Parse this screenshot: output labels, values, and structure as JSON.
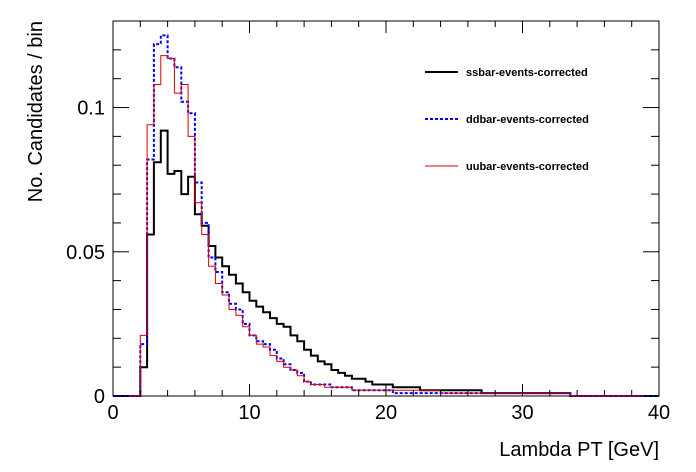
{
  "chart_data": {
    "type": "line",
    "title": "",
    "xlabel": "Lambda PT [GeV]",
    "ylabel": "No. Candidates / bin",
    "xlim": [
      0,
      40
    ],
    "ylim": [
      0,
      0.13
    ],
    "xticks": [
      0,
      10,
      20,
      30,
      40
    ],
    "ytick_values": [
      0,
      0.05,
      0.1
    ],
    "yticks": [
      "0",
      "0.05",
      "0.1"
    ],
    "bin_edges_start": 0,
    "bin_width": 0.5,
    "legend_position": "top-right",
    "series": [
      {
        "name": "ssbar-events-corrected",
        "color": "#000000",
        "style": "solid",
        "values": [
          0,
          0,
          0,
          0,
          0.01,
          0.056,
          0.081,
          0.092,
          0.077,
          0.078,
          0.07,
          0.076,
          0.063,
          0.059,
          0.052,
          0.048,
          0.045,
          0.042,
          0.039,
          0.036,
          0.033,
          0.031,
          0.029,
          0.027,
          0.025,
          0.024,
          0.021,
          0.019,
          0.016,
          0.014,
          0.012,
          0.011,
          0.009,
          0.008,
          0.007,
          0.006,
          0.006,
          0.005,
          0.004,
          0.004,
          0.004,
          0.003,
          0.003,
          0.003,
          0.003,
          0.002,
          0.002,
          0.002,
          0.002,
          0.002,
          0.002,
          0.002,
          0.002,
          0.002,
          0.001,
          0.001,
          0.001,
          0.001,
          0.001,
          0.001,
          0.001,
          0.001,
          0.001,
          0.001,
          0.001,
          0.001,
          0.001,
          0,
          0,
          0,
          0,
          0,
          0,
          0,
          0,
          0,
          0,
          0,
          0,
          0
        ]
      },
      {
        "name": "ddbar-events-corrected",
        "color": "#0000ff",
        "style": "dotted",
        "values": [
          0,
          0,
          0,
          0,
          0.018,
          0.082,
          0.122,
          0.125,
          0.117,
          0.114,
          0.102,
          0.098,
          0.074,
          0.06,
          0.048,
          0.043,
          0.036,
          0.032,
          0.03,
          0.025,
          0.021,
          0.019,
          0.018,
          0.016,
          0.013,
          0.011,
          0.009,
          0.008,
          0.005,
          0.004,
          0.004,
          0.004,
          0.003,
          0.003,
          0.003,
          0.002,
          0.002,
          0.002,
          0.002,
          0.002,
          0.002,
          0.001,
          0.001,
          0.001,
          0.001,
          0.001,
          0.001,
          0.001,
          0.001,
          0.001,
          0.001,
          0.001,
          0.001,
          0.001,
          0.001,
          0.001,
          0.001,
          0.001,
          0.001,
          0.001,
          0.001,
          0.001,
          0.001,
          0.001,
          0.001,
          0.001,
          0.001,
          0,
          0,
          0,
          0,
          0,
          0,
          0,
          0,
          0,
          0,
          0,
          0,
          0
        ]
      },
      {
        "name": "uubar-events-corrected",
        "color": "#dd0000",
        "style": "solid",
        "values": [
          0,
          0,
          0,
          0,
          0.021,
          0.094,
          0.108,
          0.118,
          0.117,
          0.105,
          0.108,
          0.09,
          0.067,
          0.056,
          0.045,
          0.039,
          0.035,
          0.03,
          0.028,
          0.024,
          0.021,
          0.018,
          0.017,
          0.014,
          0.012,
          0.01,
          0.009,
          0.007,
          0.005,
          0.004,
          0.004,
          0.003,
          0.003,
          0.003,
          0.003,
          0.002,
          0.002,
          0.002,
          0.002,
          0.002,
          0.002,
          0.002,
          0.002,
          0.002,
          0.002,
          0.002,
          0.002,
          0.002,
          0.001,
          0.001,
          0.001,
          0.001,
          0.001,
          0.001,
          0.001,
          0.001,
          0.001,
          0.001,
          0.001,
          0.001,
          0.001,
          0.001,
          0.001,
          0.001,
          0.001,
          0.001,
          0.001,
          0,
          0,
          0,
          0,
          0,
          0,
          0,
          0,
          0,
          0,
          0,
          0,
          0
        ]
      }
    ]
  }
}
